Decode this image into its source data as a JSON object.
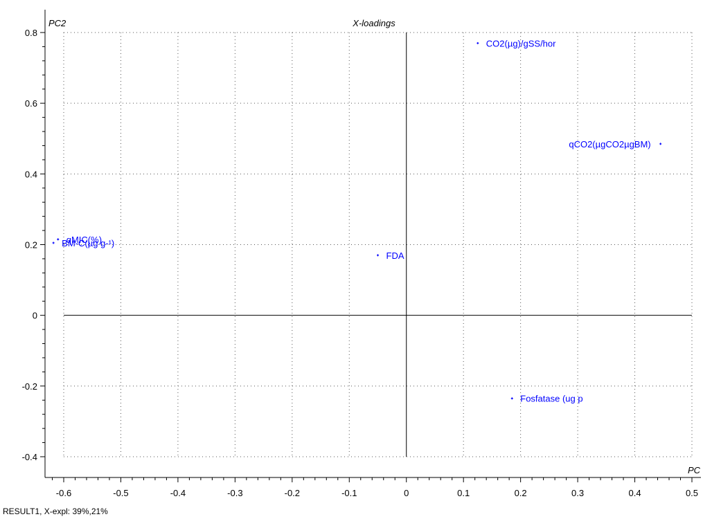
{
  "chart_data": {
    "type": "scatter",
    "title": "X-loadings",
    "xlabel": "PC",
    "ylabel": "PC2",
    "xlim": [
      -0.6,
      0.5
    ],
    "ylim": [
      -0.4,
      0.8
    ],
    "x_ticks": [
      "-0.6",
      "-0.5",
      "-0.4",
      "-0.3",
      "-0.2",
      "-0.1",
      "0",
      "0.1",
      "0.2",
      "0.3",
      "0.4",
      "0.5"
    ],
    "y_ticks": [
      "0.8",
      "0.6",
      "0.4",
      "0.2",
      "0",
      "-0.2",
      "-0.4"
    ],
    "grid": true,
    "point_color": "#0000ff",
    "points": [
      {
        "label": "CO2(µg)/gSS/hor",
        "x": 0.125,
        "y": 0.77
      },
      {
        "label": "qCO2(µgCO2µgBM)",
        "x": 0.445,
        "y": 0.485
      },
      {
        "label": "qMIC(%)",
        "x": -0.61,
        "y": 0.215
      },
      {
        "label": "BM-C(µg g-¹)",
        "x": -0.618,
        "y": 0.205
      },
      {
        "label": "FDA",
        "x": -0.05,
        "y": 0.17
      },
      {
        "label": "Fosfatase (ug p",
        "x": 0.185,
        "y": -0.235
      }
    ]
  },
  "footer": "RESULT1, X-expl: 39%,21%"
}
